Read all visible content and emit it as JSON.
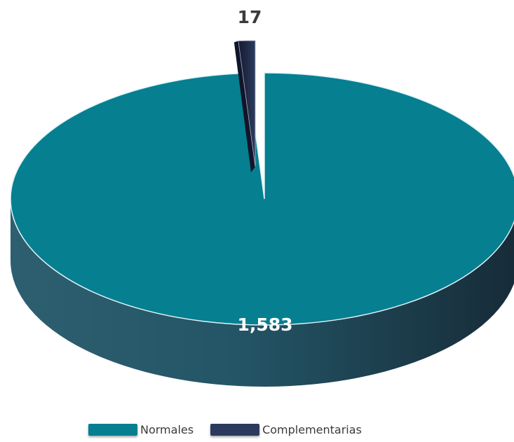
{
  "chart_data": {
    "type": "pie",
    "categories": [
      "Normales",
      "Complementarias"
    ],
    "values": [
      1583,
      17
    ],
    "value_labels": [
      "1,583",
      "17"
    ],
    "colors": [
      "#067f91",
      "#2c3a5e"
    ],
    "legend_position": "bottom",
    "style": "3d-exploded"
  }
}
